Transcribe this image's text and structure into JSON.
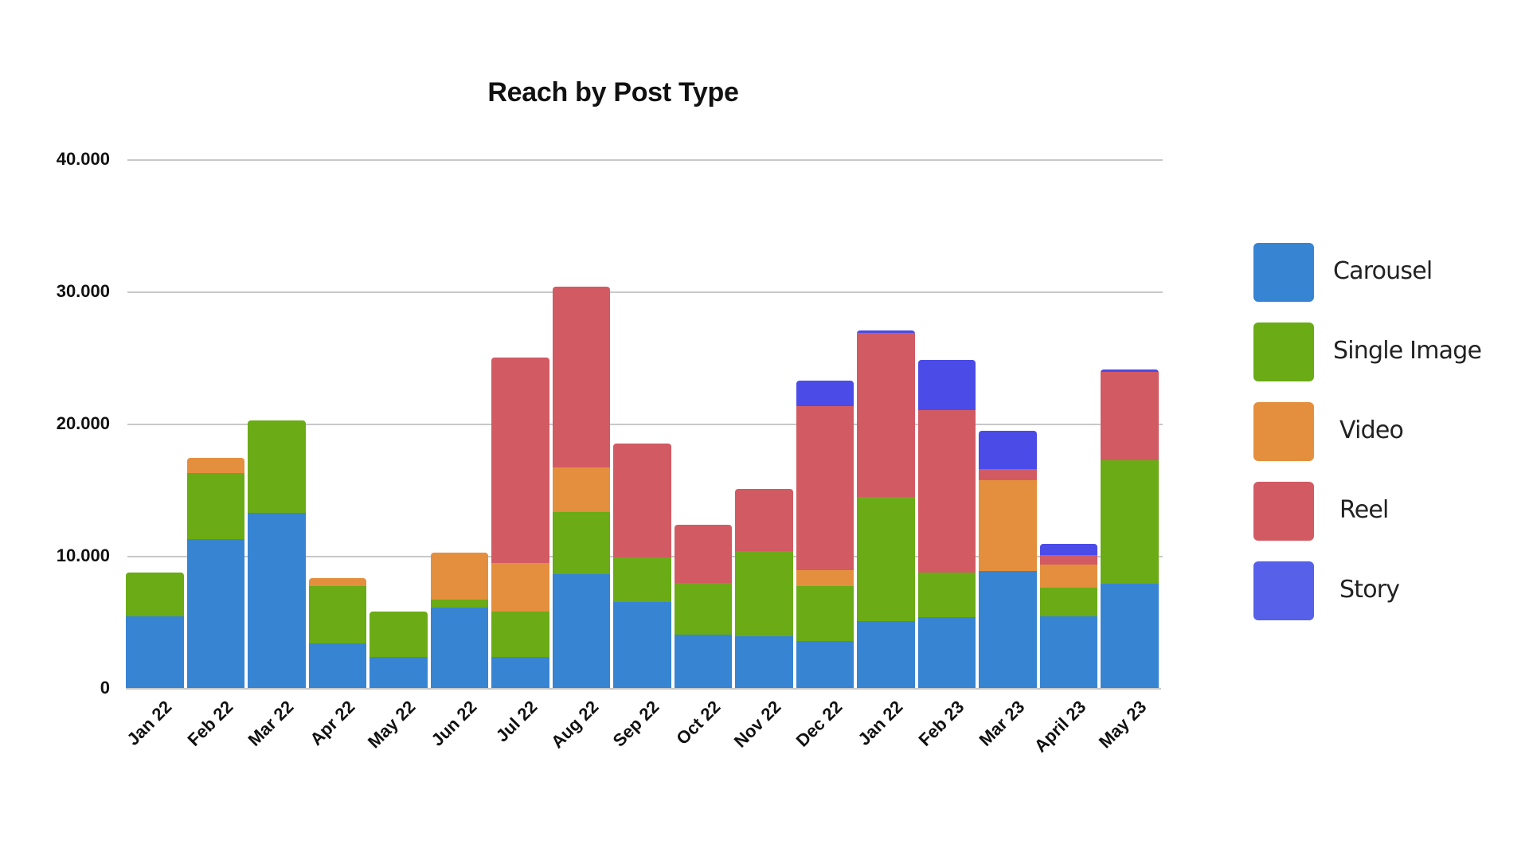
{
  "chart_data": {
    "type": "bar",
    "stacked": true,
    "title": "Reach by Post Type",
    "xlabel": "",
    "ylabel": "",
    "ylim": [
      0,
      40000
    ],
    "yticks": [
      0,
      10000,
      20000,
      30000,
      40000
    ],
    "ytick_labels": [
      "0",
      "10.000",
      "20.000",
      "30.000",
      "40.000"
    ],
    "grid": true,
    "legend_position": "right",
    "categories": [
      "Jan 22",
      "Feb 22",
      "Mar 22",
      "Apr 22",
      "May 22",
      "Jun 22",
      "Jul 22",
      "Aug 22",
      "Sep 22",
      "Oct 22",
      "Nov 22",
      "Dec 22",
      "Jan 22",
      "Feb 23",
      "Mar 23",
      "April 23",
      "May 23"
    ],
    "series": [
      {
        "name": "Carousel",
        "color": "#3784d3",
        "values": [
          5500,
          11300,
          13300,
          3450,
          2400,
          6150,
          2400,
          8650,
          6550,
          4100,
          4000,
          3600,
          5100,
          5450,
          8900,
          5500,
          7950
        ]
      },
      {
        "name": "Single Image",
        "color": "#6aab16",
        "values": [
          3300,
          5000,
          7000,
          4350,
          3450,
          600,
          3450,
          4700,
          3400,
          3900,
          6400,
          4150,
          9400,
          3350,
          0,
          2150,
          9350
        ]
      },
      {
        "name": "Video",
        "color": "#e48f3d",
        "values": [
          0,
          1150,
          0,
          550,
          0,
          3550,
          3650,
          3400,
          0,
          0,
          0,
          1200,
          0,
          0,
          6900,
          1750,
          0
        ]
      },
      {
        "name": "Reel",
        "color": "#d25a63",
        "values": [
          0,
          0,
          0,
          0,
          0,
          0,
          15550,
          13650,
          8600,
          4400,
          4700,
          12450,
          12400,
          12300,
          850,
          700,
          6650
        ]
      },
      {
        "name": "Story",
        "color": "#4b4be8",
        "values": [
          0,
          0,
          0,
          0,
          0,
          0,
          0,
          0,
          0,
          0,
          0,
          1900,
          200,
          3800,
          2850,
          850,
          200
        ]
      }
    ],
    "totals": [
      8800,
      17450,
      20300,
      8350,
      5850,
      10300,
      25050,
      30400,
      18550,
      12400,
      15100,
      23300,
      27100,
      24900,
      19500,
      10950,
      24150
    ]
  },
  "legend": {
    "items": [
      {
        "label": "Carousel",
        "color": "#3784d3"
      },
      {
        "label": "Single Image",
        "color": "#6aab16"
      },
      {
        "label": "Video",
        "color": "#e48f3d"
      },
      {
        "label": "Reel",
        "color": "#d25a63"
      },
      {
        "label": "Story",
        "color": "#5660e8"
      }
    ]
  }
}
